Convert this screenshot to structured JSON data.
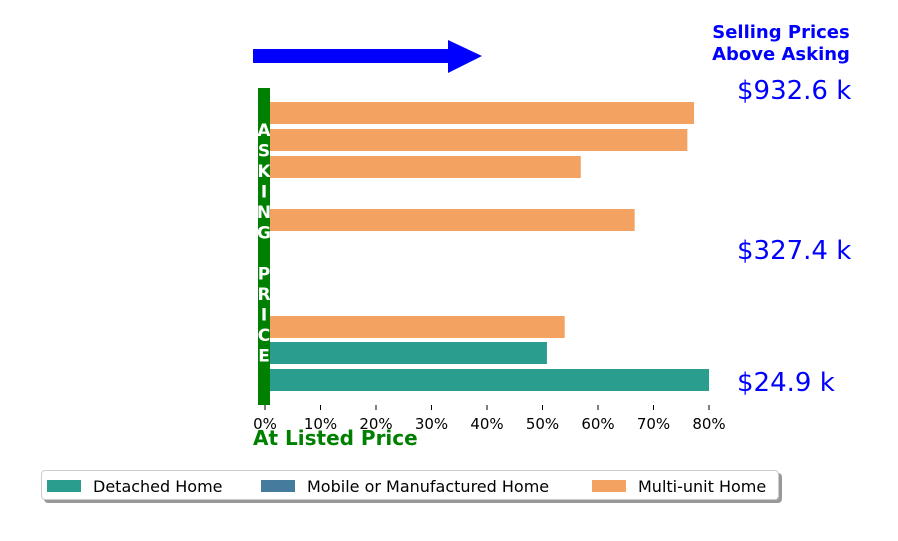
{
  "annotations": {
    "top_right_line1": "Selling Prices",
    "top_right_line2": "Above Asking",
    "bottom_label": "At Listed Price",
    "vertical_label": "ASKING PRICE",
    "price_labels": [
      "$932.6 k",
      "$327.4 k",
      "$24.9 k"
    ]
  },
  "colors": {
    "arrow": "#0000ff",
    "asking_bar": "#008000",
    "detached": "#2a9d8f",
    "mobile": "#457b9d",
    "multi_unit": "#f4a261",
    "annotation_blue": "#0000ff",
    "annotation_green": "#008000"
  },
  "chart_data": {
    "type": "bar",
    "orientation": "horizontal",
    "x": {
      "ticks": [
        "0%",
        "10%",
        "20%",
        "30%",
        "40%",
        "50%",
        "60%",
        "70%",
        "80%"
      ],
      "lim": [
        0,
        80
      ]
    },
    "bars": [
      {
        "series": "Multi-unit Home",
        "value": 77.3
      },
      {
        "series": "Multi-unit Home",
        "value": 76.1
      },
      {
        "series": "Multi-unit Home",
        "value": 56.9
      },
      {
        "series": "Multi-unit Home",
        "value": 66.6
      },
      {
        "series": "Multi-unit Home",
        "value": 54.0
      },
      {
        "series": "Detached Home",
        "value": 50.8
      },
      {
        "series": "Detached Home",
        "value": 80.0
      }
    ],
    "legend": {
      "placement": "bottom",
      "entries": [
        "Detached Home",
        "Mobile or Manufactured Home",
        "Multi-unit Home"
      ]
    }
  }
}
